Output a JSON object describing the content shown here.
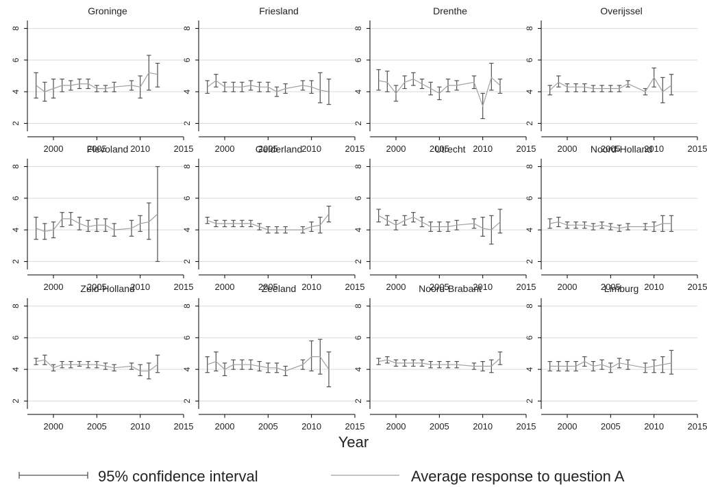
{
  "chart_data": {
    "type": "line",
    "layout": "small-multiples-4x3",
    "xlabel": "Year",
    "ylabel": "",
    "xlim": [
      1997,
      2015
    ],
    "ylim": [
      1.5,
      8.5
    ],
    "xticks": [
      2000,
      2005,
      2010,
      2015
    ],
    "yticks": [
      2,
      4,
      6,
      8
    ],
    "grid": true,
    "legend_position": "bottom",
    "legend": {
      "ci_label": "95% confidence interval",
      "line_label": "Average response to question A"
    },
    "colors": {
      "line": "#a0a0a0",
      "ci": "#505050",
      "grid": "#d9d9d9",
      "axis": "#000000"
    },
    "x": [
      1998,
      1999,
      2000,
      2001,
      2002,
      2003,
      2004,
      2005,
      2006,
      2007,
      2009,
      2010,
      2011,
      2012
    ],
    "panels": [
      {
        "name": "Groninge",
        "mean": [
          4.4,
          4.0,
          4.2,
          4.4,
          4.4,
          4.5,
          4.5,
          4.2,
          4.2,
          4.3,
          4.4,
          4.3,
          5.2,
          5.1
        ],
        "lower": [
          3.6,
          3.4,
          3.6,
          4.0,
          4.1,
          4.2,
          4.2,
          4.0,
          4.0,
          4.0,
          4.1,
          3.6,
          4.1,
          4.3
        ],
        "upper": [
          5.2,
          4.6,
          4.8,
          4.8,
          4.7,
          4.8,
          4.8,
          4.4,
          4.4,
          4.6,
          4.7,
          5.0,
          6.3,
          5.8
        ]
      },
      {
        "name": "Friesland",
        "mean": [
          4.3,
          4.7,
          4.3,
          4.3,
          4.3,
          4.4,
          4.3,
          4.3,
          4.0,
          4.2,
          4.4,
          4.3,
          4.1,
          4.0
        ],
        "lower": [
          3.9,
          4.3,
          4.0,
          4.0,
          4.0,
          4.1,
          4.0,
          4.0,
          3.7,
          3.9,
          4.1,
          3.9,
          3.3,
          3.2
        ],
        "upper": [
          4.7,
          5.1,
          4.6,
          4.6,
          4.6,
          4.7,
          4.6,
          4.6,
          4.3,
          4.5,
          4.7,
          4.7,
          5.2,
          4.8
        ]
      },
      {
        "name": "Drenthe",
        "mean": [
          4.7,
          4.6,
          3.9,
          4.6,
          4.8,
          4.5,
          4.2,
          3.9,
          4.4,
          4.4,
          4.6,
          3.1,
          4.9,
          4.4
        ],
        "lower": [
          4.1,
          4.0,
          3.4,
          4.2,
          4.4,
          4.2,
          3.8,
          3.5,
          4.0,
          4.1,
          4.2,
          2.3,
          4.1,
          3.9
        ],
        "upper": [
          5.4,
          5.3,
          4.4,
          5.0,
          5.2,
          4.8,
          4.6,
          4.3,
          4.8,
          4.7,
          5.0,
          3.9,
          5.8,
          4.8
        ]
      },
      {
        "name": "Overijssel",
        "mean": [
          4.1,
          4.6,
          4.3,
          4.3,
          4.3,
          4.2,
          4.2,
          4.2,
          4.2,
          4.5,
          4.0,
          4.9,
          4.0,
          4.4
        ],
        "lower": [
          3.8,
          4.3,
          4.0,
          4.0,
          4.0,
          4.0,
          4.0,
          4.0,
          4.0,
          4.3,
          3.8,
          4.3,
          3.3,
          3.8
        ],
        "upper": [
          4.4,
          5.0,
          4.5,
          4.5,
          4.5,
          4.4,
          4.4,
          4.4,
          4.4,
          4.7,
          4.2,
          5.5,
          4.9,
          5.1
        ]
      },
      {
        "name": "Flevoland",
        "mean": [
          4.1,
          3.9,
          4.0,
          4.7,
          4.7,
          4.4,
          4.2,
          4.3,
          4.3,
          4.0,
          4.1,
          4.4,
          4.5,
          5.0
        ],
        "lower": [
          3.4,
          3.4,
          3.5,
          4.2,
          4.3,
          4.0,
          3.9,
          3.9,
          3.9,
          3.6,
          3.6,
          3.9,
          3.4,
          2.0
        ],
        "upper": [
          4.8,
          4.4,
          4.5,
          5.1,
          5.1,
          4.8,
          4.6,
          4.7,
          4.7,
          4.4,
          4.6,
          4.9,
          5.7,
          8.0
        ]
      },
      {
        "name": "Gelderland",
        "mean": [
          4.6,
          4.4,
          4.4,
          4.4,
          4.4,
          4.4,
          4.2,
          4.0,
          4.0,
          4.0,
          4.0,
          4.2,
          4.3,
          5.0
        ],
        "lower": [
          4.4,
          4.2,
          4.2,
          4.2,
          4.2,
          4.2,
          4.0,
          3.8,
          3.8,
          3.8,
          3.8,
          3.9,
          3.8,
          4.5
        ],
        "upper": [
          4.8,
          4.6,
          4.6,
          4.6,
          4.6,
          4.6,
          4.4,
          4.2,
          4.2,
          4.2,
          4.2,
          4.5,
          4.8,
          5.5
        ]
      },
      {
        "name": "Utrecht",
        "mean": [
          4.9,
          4.6,
          4.3,
          4.6,
          4.8,
          4.5,
          4.2,
          4.2,
          4.2,
          4.3,
          4.4,
          4.1,
          4.0,
          4.5
        ],
        "lower": [
          4.5,
          4.3,
          4.0,
          4.3,
          4.5,
          4.2,
          3.9,
          3.9,
          3.9,
          4.0,
          4.1,
          3.6,
          3.1,
          3.8
        ],
        "upper": [
          5.3,
          4.9,
          4.6,
          4.9,
          5.1,
          4.8,
          4.5,
          4.5,
          4.5,
          4.6,
          4.7,
          4.8,
          4.9,
          5.3
        ]
      },
      {
        "name": "Noord-Holland",
        "mean": [
          4.4,
          4.5,
          4.3,
          4.3,
          4.3,
          4.2,
          4.3,
          4.2,
          4.1,
          4.2,
          4.2,
          4.2,
          4.4,
          4.4
        ],
        "lower": [
          4.1,
          4.2,
          4.1,
          4.1,
          4.1,
          4.0,
          4.1,
          4.0,
          3.9,
          4.0,
          4.0,
          3.9,
          3.9,
          3.9
        ],
        "upper": [
          4.7,
          4.8,
          4.5,
          4.5,
          4.5,
          4.4,
          4.5,
          4.4,
          4.3,
          4.4,
          4.4,
          4.5,
          4.9,
          4.9
        ]
      },
      {
        "name": "Zuid-Holland",
        "mean": [
          4.5,
          4.6,
          4.1,
          4.3,
          4.3,
          4.3,
          4.3,
          4.3,
          4.2,
          4.1,
          4.2,
          3.9,
          3.9,
          4.3
        ],
        "lower": [
          4.3,
          4.3,
          3.9,
          4.1,
          4.1,
          4.2,
          4.1,
          4.1,
          4.0,
          3.9,
          4.0,
          3.6,
          3.4,
          3.8
        ],
        "upper": [
          4.7,
          4.9,
          4.3,
          4.5,
          4.5,
          4.5,
          4.5,
          4.5,
          4.4,
          4.3,
          4.4,
          4.3,
          4.4,
          4.9
        ]
      },
      {
        "name": "Zeeland",
        "mean": [
          4.3,
          4.5,
          4.0,
          4.3,
          4.3,
          4.3,
          4.2,
          4.1,
          4.1,
          3.9,
          4.3,
          4.8,
          4.8,
          4.0
        ],
        "lower": [
          3.8,
          3.9,
          3.6,
          4.0,
          4.0,
          4.0,
          3.9,
          3.8,
          3.8,
          3.6,
          4.0,
          3.9,
          3.7,
          2.9
        ],
        "upper": [
          4.8,
          5.1,
          4.4,
          4.6,
          4.6,
          4.6,
          4.5,
          4.4,
          4.4,
          4.2,
          4.6,
          5.8,
          5.9,
          5.1
        ]
      },
      {
        "name": "Noord-Brabant",
        "mean": [
          4.5,
          4.6,
          4.4,
          4.4,
          4.4,
          4.4,
          4.3,
          4.3,
          4.3,
          4.3,
          4.2,
          4.2,
          4.2,
          4.7
        ],
        "lower": [
          4.3,
          4.4,
          4.2,
          4.2,
          4.2,
          4.2,
          4.1,
          4.1,
          4.1,
          4.1,
          4.0,
          3.9,
          3.8,
          4.3
        ],
        "upper": [
          4.7,
          4.8,
          4.6,
          4.6,
          4.6,
          4.6,
          4.5,
          4.5,
          4.5,
          4.5,
          4.4,
          4.5,
          4.6,
          5.1
        ]
      },
      {
        "name": "Limburg",
        "mean": [
          4.2,
          4.2,
          4.2,
          4.2,
          4.5,
          4.2,
          4.3,
          4.1,
          4.4,
          4.3,
          4.1,
          4.2,
          4.3,
          4.4
        ],
        "lower": [
          3.9,
          3.9,
          3.9,
          3.9,
          4.2,
          3.9,
          4.0,
          3.8,
          4.1,
          4.0,
          3.8,
          3.8,
          3.8,
          3.7
        ],
        "upper": [
          4.5,
          4.5,
          4.5,
          4.5,
          4.8,
          4.5,
          4.6,
          4.4,
          4.7,
          4.6,
          4.4,
          4.6,
          4.8,
          5.2
        ]
      }
    ]
  }
}
